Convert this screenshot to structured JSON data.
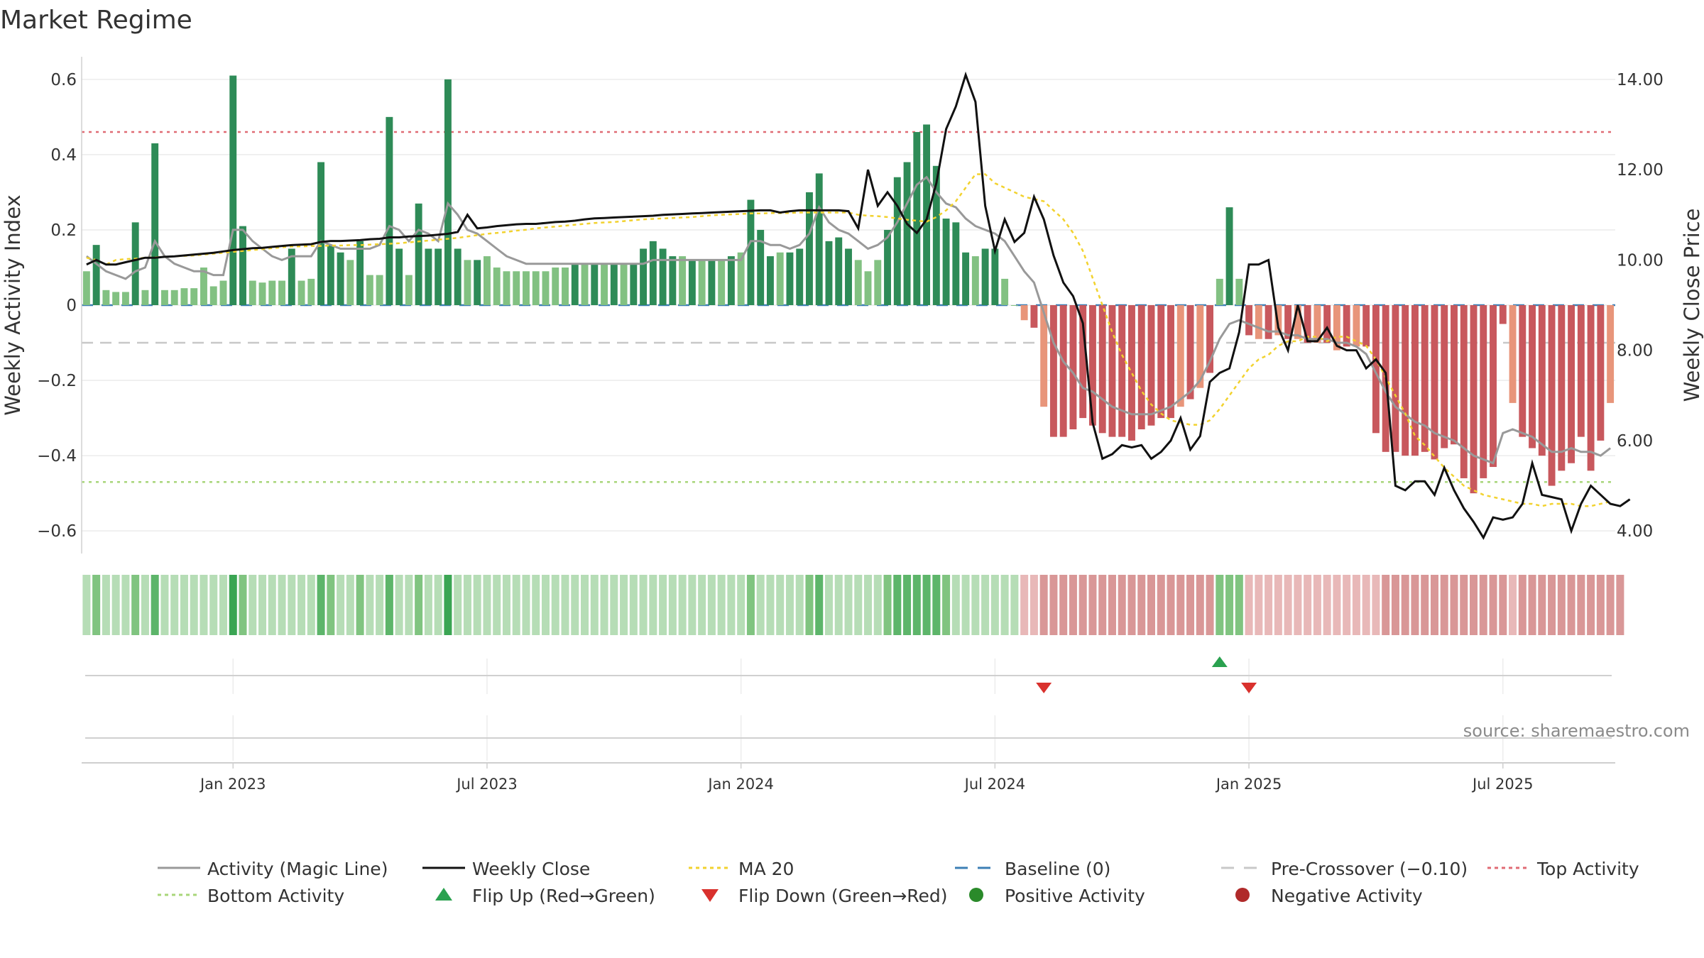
{
  "chart_data": {
    "type": "bar",
    "title": "Market Regime",
    "ylabel": "Weekly Activity Index",
    "y2label": "Weekly Close Price",
    "ylim": [
      -0.66,
      0.66
    ],
    "y2lim": [
      3.5,
      14.5
    ],
    "yticks": [
      "0.6",
      "0.4",
      "0.2",
      "0",
      "−0.2",
      "−0.4",
      "−0.6"
    ],
    "ytick_values": [
      0.6,
      0.4,
      0.2,
      0,
      -0.2,
      -0.4,
      -0.6
    ],
    "y2ticks": [
      "14.00",
      "12.00",
      "10.00",
      "8.00",
      "6.00",
      "4.00"
    ],
    "y2tick_values": [
      14,
      12,
      10,
      8,
      6,
      4
    ],
    "xticks": [
      "Jan 2023",
      "Jul 2023",
      "Jan 2024",
      "Jul 2024",
      "Jan 2025",
      "Jul 2025"
    ],
    "xtick_weeks": [
      15,
      41,
      67,
      93,
      119,
      145
    ],
    "weeks": 157,
    "reference_lines": {
      "baseline": 0,
      "pre_crossover": -0.1,
      "top_activity": 0.46,
      "bottom_activity": -0.47
    },
    "activity": [
      0.09,
      0.16,
      0.04,
      0.035,
      0.035,
      0.22,
      0.04,
      0.43,
      0.04,
      0.04,
      0.045,
      0.045,
      0.1,
      0.05,
      0.065,
      0.61,
      0.21,
      0.065,
      0.06,
      0.065,
      0.065,
      0.15,
      0.065,
      0.07,
      0.38,
      0.16,
      0.14,
      0.12,
      0.17,
      0.08,
      0.08,
      0.5,
      0.15,
      0.08,
      0.27,
      0.15,
      0.15,
      0.6,
      0.15,
      0.12,
      0.12,
      0.13,
      0.1,
      0.09,
      0.09,
      0.09,
      0.09,
      0.09,
      0.1,
      0.1,
      0.11,
      0.11,
      0.11,
      0.11,
      0.11,
      0.11,
      0.11,
      0.15,
      0.17,
      0.15,
      0.13,
      0.13,
      0.12,
      0.12,
      0.12,
      0.12,
      0.13,
      0.14,
      0.28,
      0.2,
      0.13,
      0.14,
      0.14,
      0.15,
      0.3,
      0.35,
      0.17,
      0.18,
      0.15,
      0.12,
      0.09,
      0.12,
      0.2,
      0.34,
      0.38,
      0.46,
      0.48,
      0.37,
      0.23,
      0.22,
      0.14,
      0.13,
      0.15,
      0.15,
      0.07,
      0,
      -0.04,
      -0.06,
      -0.27,
      -0.35,
      -0.35,
      -0.33,
      -0.3,
      -0.32,
      -0.34,
      -0.35,
      -0.35,
      -0.36,
      -0.33,
      -0.32,
      -0.3,
      -0.3,
      -0.27,
      -0.25,
      -0.22,
      -0.18,
      0.07,
      0.26,
      0.07,
      -0.08,
      -0.09,
      -0.09,
      -0.08,
      -0.09,
      -0.09,
      -0.1,
      -0.1,
      -0.1,
      -0.12,
      -0.11,
      -0.11,
      -0.11,
      -0.34,
      -0.39,
      -0.39,
      -0.4,
      -0.4,
      -0.39,
      -0.41,
      -0.38,
      -0.37,
      -0.46,
      -0.5,
      -0.46,
      -0.43,
      -0.05,
      -0.26,
      -0.35,
      -0.38,
      -0.4,
      -0.48,
      -0.44,
      -0.42,
      -0.35,
      -0.44,
      -0.36,
      -0.26
    ],
    "magic_line": [
      0.13,
      0.11,
      0.09,
      0.08,
      0.07,
      0.09,
      0.1,
      0.17,
      0.13,
      0.11,
      0.1,
      0.09,
      0.09,
      0.08,
      0.08,
      0.2,
      0.2,
      0.17,
      0.15,
      0.13,
      0.12,
      0.13,
      0.13,
      0.13,
      0.17,
      0.16,
      0.15,
      0.15,
      0.15,
      0.15,
      0.16,
      0.21,
      0.2,
      0.17,
      0.2,
      0.19,
      0.17,
      0.27,
      0.24,
      0.2,
      0.19,
      0.17,
      0.15,
      0.13,
      0.12,
      0.11,
      0.11,
      0.11,
      0.11,
      0.11,
      0.11,
      0.11,
      0.11,
      0.11,
      0.11,
      0.11,
      0.11,
      0.11,
      0.12,
      0.12,
      0.12,
      0.12,
      0.12,
      0.12,
      0.12,
      0.12,
      0.12,
      0.12,
      0.17,
      0.17,
      0.16,
      0.16,
      0.15,
      0.16,
      0.19,
      0.26,
      0.22,
      0.2,
      0.19,
      0.17,
      0.15,
      0.16,
      0.18,
      0.22,
      0.27,
      0.32,
      0.34,
      0.3,
      0.27,
      0.26,
      0.23,
      0.21,
      0.2,
      0.19,
      0.17,
      0.13,
      0.09,
      0.06,
      -0.02,
      -0.1,
      -0.15,
      -0.18,
      -0.22,
      -0.23,
      -0.25,
      -0.27,
      -0.28,
      -0.29,
      -0.29,
      -0.29,
      -0.28,
      -0.27,
      -0.25,
      -0.23,
      -0.2,
      -0.15,
      -0.09,
      -0.05,
      -0.04,
      -0.05,
      -0.06,
      -0.07,
      -0.07,
      -0.08,
      -0.08,
      -0.09,
      -0.09,
      -0.09,
      -0.1,
      -0.1,
      -0.11,
      -0.13,
      -0.18,
      -0.23,
      -0.27,
      -0.29,
      -0.31,
      -0.32,
      -0.34,
      -0.35,
      -0.36,
      -0.38,
      -0.4,
      -0.41,
      -0.42,
      -0.34,
      -0.33,
      -0.34,
      -0.35,
      -0.37,
      -0.39,
      -0.39,
      -0.38,
      -0.39,
      -0.39,
      -0.4,
      -0.38
    ],
    "weekly_close": [
      9.9,
      10.0,
      9.9,
      9.9,
      9.95,
      10.0,
      10.05,
      10.05,
      10.07,
      10.08,
      10.1,
      10.12,
      10.14,
      10.16,
      10.19,
      10.22,
      10.24,
      10.26,
      10.27,
      10.29,
      10.31,
      10.33,
      10.34,
      10.35,
      10.4,
      10.42,
      10.42,
      10.43,
      10.44,
      10.46,
      10.47,
      10.5,
      10.5,
      10.52,
      10.53,
      10.54,
      10.56,
      10.58,
      10.62,
      11.0,
      10.7,
      10.72,
      10.75,
      10.77,
      10.79,
      10.8,
      10.8,
      10.82,
      10.84,
      10.85,
      10.87,
      10.9,
      10.92,
      10.93,
      10.94,
      10.95,
      10.96,
      10.97,
      10.98,
      11.0,
      11.01,
      11.02,
      11.03,
      11.04,
      11.05,
      11.06,
      11.07,
      11.08,
      11.09,
      11.1,
      11.1,
      11.05,
      11.08,
      11.1,
      11.1,
      11.1,
      11.1,
      11.1,
      11.08,
      10.7,
      12.0,
      11.2,
      11.5,
      11.2,
      10.8,
      10.6,
      10.9,
      11.7,
      12.9,
      13.4,
      14.1,
      13.5,
      11.2,
      10.2,
      10.9,
      10.4,
      10.6,
      11.4,
      10.9,
      10.1,
      9.5,
      9.2,
      8.6,
      6.4,
      5.6,
      5.7,
      5.9,
      5.85,
      5.9,
      5.6,
      5.75,
      6.0,
      6.5,
      5.8,
      6.1,
      7.3,
      7.5,
      7.6,
      8.4,
      9.9,
      9.9,
      10.0,
      8.5,
      8.0,
      9.0,
      8.2,
      8.2,
      8.5,
      8.1,
      8.0,
      8.0,
      7.6,
      7.8,
      7.5,
      5.0,
      4.9,
      5.1,
      5.1,
      4.8,
      5.4,
      4.9,
      4.5,
      4.2,
      3.85,
      4.3,
      4.25,
      4.3,
      4.6,
      5.5,
      4.8,
      4.75,
      4.7,
      4.0,
      4.6,
      5.0,
      4.8,
      4.6,
      4.55,
      4.7
    ],
    "ma20": [
      10.05,
      10.0,
      9.9,
      10.0,
      10.02,
      10.03,
      10.05,
      10.06,
      10.07,
      10.08,
      10.09,
      10.1,
      10.12,
      10.14,
      10.16,
      10.18,
      10.2,
      10.22,
      10.24,
      10.26,
      10.28,
      10.3,
      10.3,
      10.31,
      10.31,
      10.32,
      10.32,
      10.33,
      10.33,
      10.34,
      10.35,
      10.36,
      10.37,
      10.39,
      10.41,
      10.43,
      10.45,
      10.47,
      10.49,
      10.52,
      10.55,
      10.58,
      10.6,
      10.62,
      10.65,
      10.67,
      10.7,
      10.72,
      10.74,
      10.76,
      10.78,
      10.8,
      10.82,
      10.83,
      10.84,
      10.86,
      10.88,
      10.9,
      10.91,
      10.92,
      10.93,
      10.94,
      10.95,
      10.97,
      10.99,
      11.0,
      11.01,
      11.02,
      11.03,
      11.03,
      11.04,
      11.04,
      11.04,
      11.05,
      11.05,
      11.05,
      11.05,
      11.05,
      11.05,
      11.0,
      10.98,
      10.97,
      10.95,
      10.92,
      10.89,
      10.87,
      10.85,
      10.95,
      11.1,
      11.3,
      11.6,
      11.9,
      11.9,
      11.7,
      11.6,
      11.5,
      11.4,
      11.35,
      11.3,
      11.1,
      10.9,
      10.6,
      10.2,
      9.6,
      9.0,
      8.4,
      7.9,
      7.5,
      7.1,
      6.8,
      6.6,
      6.45,
      6.4,
      6.35,
      6.35,
      6.45,
      6.7,
      7.0,
      7.3,
      7.6,
      7.8,
      7.9,
      8.1,
      8.2,
      8.2,
      8.3,
      8.3,
      8.2,
      8.3,
      8.3,
      8.2,
      8.1,
      7.8,
      7.4,
      7.0,
      6.6,
      6.1,
      5.9,
      5.65,
      5.4,
      5.2,
      5.0,
      4.9,
      4.8,
      4.75,
      4.7,
      4.65,
      4.6,
      4.6,
      4.55,
      4.6,
      4.6,
      4.6,
      4.55,
      4.55,
      4.6,
      4.65
    ],
    "strength_strip": [
      1,
      2,
      1,
      1,
      1,
      2,
      1,
      3,
      1,
      1,
      1,
      1,
      1,
      1,
      1,
      4,
      2,
      1,
      1,
      1,
      1,
      1,
      1,
      1,
      3,
      2,
      1,
      1,
      2,
      1,
      1,
      3,
      1,
      1,
      2,
      1,
      1,
      4,
      1,
      1,
      1,
      1,
      1,
      1,
      1,
      1,
      1,
      1,
      1,
      1,
      1,
      1,
      1,
      1,
      1,
      1,
      1,
      1,
      1,
      1,
      1,
      1,
      1,
      1,
      1,
      1,
      1,
      1,
      2,
      1,
      1,
      1,
      1,
      1,
      2,
      3,
      1,
      1,
      1,
      1,
      1,
      1,
      2,
      3,
      3,
      3,
      3,
      3,
      2,
      1,
      1,
      1,
      1,
      1,
      1,
      1,
      1,
      1,
      2,
      2,
      2,
      2,
      2,
      2,
      2,
      2,
      2,
      2,
      2,
      2,
      2,
      2,
      2,
      2,
      2,
      2,
      2,
      2,
      2,
      1,
      1,
      1,
      1,
      1,
      1,
      1,
      1,
      1,
      1,
      1,
      1,
      1,
      1,
      2,
      2,
      2,
      2,
      2,
      2,
      2,
      2,
      2,
      2,
      2,
      2,
      2,
      1,
      2,
      2,
      2,
      2,
      2,
      2,
      2,
      2,
      2,
      2,
      2
    ],
    "flip_up_weeks": [
      116
    ],
    "flip_down_weeks": [
      98,
      119
    ],
    "source": "source: sharemaestro.com",
    "legend": [
      {
        "label": "Activity (Magic Line)",
        "kind": "line",
        "color": "#999999",
        "dash": "none"
      },
      {
        "label": "Weekly Close",
        "kind": "line",
        "color": "#111111",
        "dash": "none"
      },
      {
        "label": "MA 20",
        "kind": "line",
        "color": "#f2d22e",
        "dash": "dotted"
      },
      {
        "label": "Baseline (0)",
        "kind": "line",
        "color": "#3d7fb5",
        "dash": "dashed"
      },
      {
        "label": "Pre-Crossover (−0.10)",
        "kind": "line",
        "color": "#c8c8c8",
        "dash": "dashed"
      },
      {
        "label": "Top Activity",
        "kind": "line",
        "color": "#e06b74",
        "dash": "dotted"
      },
      {
        "label": "Bottom Activity",
        "kind": "line",
        "color": "#a8d67a",
        "dash": "dotted"
      },
      {
        "label": "Flip Up (Red→Green)",
        "kind": "triangle-up",
        "color": "#2aa14f"
      },
      {
        "label": "Flip Down (Green→Red)",
        "kind": "triangle-down",
        "color": "#d9312d"
      },
      {
        "label": "Positive Activity",
        "kind": "circle",
        "color": "#2a8a2a"
      },
      {
        "label": "Negative Activity",
        "kind": "circle",
        "color": "#b02a2a"
      }
    ],
    "colors": {
      "pos_strong": "#2e8b57",
      "pos_weak": "#82c182",
      "neg_strong": "#c8585d",
      "neg_weak": "#e8957a",
      "top_line": "#e06b74",
      "bottom_line": "#a8d67a",
      "baseline": "#3d7fb5",
      "pre_crossover": "#c8c8c8",
      "magic_line": "#999999",
      "close_line": "#111111",
      "ma20": "#f2d22e",
      "grid": "#ececec"
    }
  }
}
